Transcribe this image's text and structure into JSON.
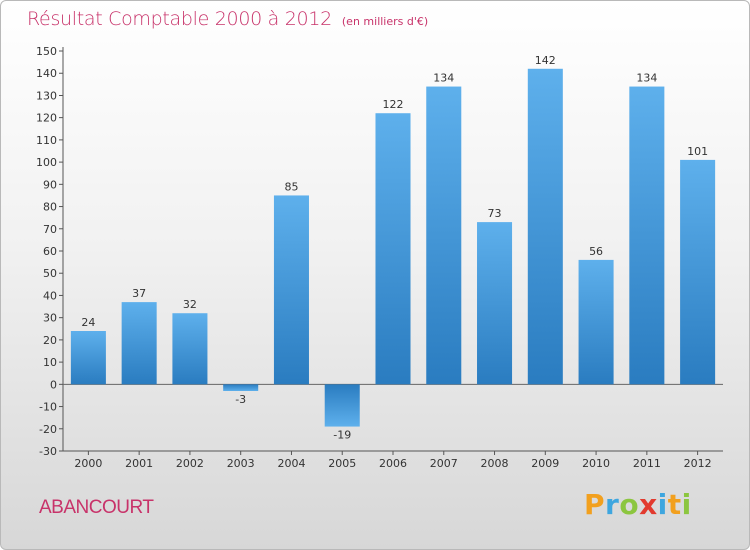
{
  "title": "Résultat Comptable 2000 à 2012",
  "unit_note": "(en milliers d'€)",
  "commune": "ABANCOURT",
  "brand": {
    "letters": [
      "P",
      "r",
      "o",
      "x",
      "i",
      "t",
      "i"
    ],
    "colors": [
      "#f2a01e",
      "#3ea6df",
      "#8cc63f",
      "#e23a2e",
      "#3ea6df",
      "#f2a01e",
      "#8cc63f"
    ]
  },
  "colors": {
    "bar": "#3d93d6",
    "title": "#c8336a"
  },
  "chart_data": {
    "type": "bar",
    "categories": [
      "2000",
      "2001",
      "2002",
      "2003",
      "2004",
      "2005",
      "2006",
      "2007",
      "2008",
      "2009",
      "2010",
      "2011",
      "2012"
    ],
    "values": [
      24,
      37,
      32,
      -3,
      85,
      -19,
      122,
      134,
      73,
      142,
      56,
      134,
      101
    ],
    "value_labels": [
      "24",
      "37",
      "32",
      "-3",
      "85",
      "-19",
      "122",
      "134",
      "73",
      "142",
      "56",
      "134",
      "101"
    ],
    "title": "Résultat Comptable 2000 à 2012",
    "xlabel": "",
    "ylabel": "",
    "ylim": [
      -30,
      150
    ],
    "yticks": [
      -30,
      -20,
      -10,
      0,
      10,
      20,
      30,
      40,
      50,
      60,
      70,
      80,
      90,
      100,
      110,
      120,
      130,
      140,
      150
    ],
    "ytick_labels": [
      "-30",
      "-20",
      "-10",
      "0",
      "10",
      "20",
      "30",
      "40",
      "50",
      "60",
      "70",
      "80",
      "90",
      "100",
      "110",
      "120",
      "130",
      "140",
      "150"
    ],
    "grid": false,
    "legend": "none"
  }
}
